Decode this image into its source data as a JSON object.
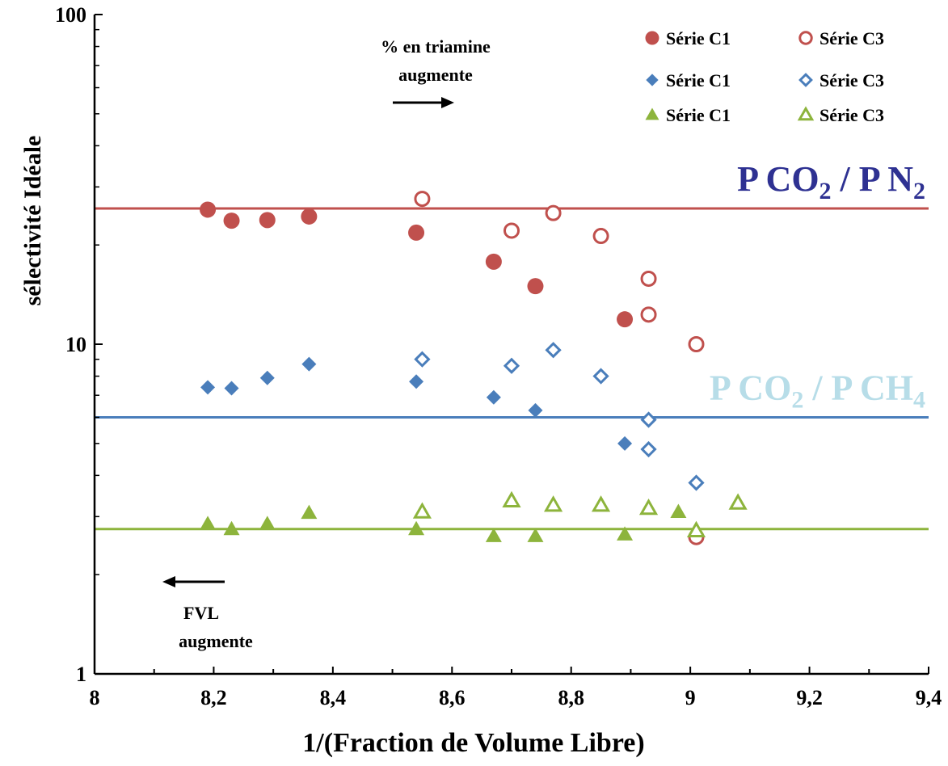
{
  "chart_data": {
    "type": "scatter",
    "title": "",
    "xlabel": "1/(Fraction de Volume Libre)",
    "ylabel": "sélectivité Idéale",
    "xlim": [
      8,
      9.4
    ],
    "ylim": [
      1,
      100
    ],
    "yscale": "log",
    "grid": false,
    "legend_position": "top-right",
    "x_ticks": [
      "8",
      "8,2",
      "8,4",
      "8,6",
      "8,8",
      "9",
      "9,2",
      "9,4"
    ],
    "x_tick_values": [
      8,
      8.2,
      8.4,
      8.6,
      8.8,
      9,
      9.2,
      9.4
    ],
    "y_ticks": [
      "1",
      "10",
      "100"
    ],
    "y_tick_values": [
      1,
      10,
      100
    ],
    "colors": {
      "red": "#c0504d",
      "blue": "#4a7ebb",
      "green": "#8db43c"
    },
    "series": [
      {
        "name": "Série C1",
        "color": "#c0504d",
        "marker": "circle",
        "filled": true,
        "x": [
          8.19,
          8.23,
          8.29,
          8.36,
          8.54,
          8.67,
          8.74,
          8.89
        ],
        "y": [
          25.6,
          23.7,
          23.8,
          24.4,
          21.8,
          17.8,
          15.0,
          11.9
        ]
      },
      {
        "name": "Série C3",
        "color": "#c0504d",
        "marker": "circle",
        "filled": false,
        "x": [
          8.55,
          8.7,
          8.77,
          8.85,
          8.93,
          8.93,
          9.01,
          9.01
        ],
        "y": [
          27.6,
          22.1,
          25.0,
          21.3,
          15.8,
          12.3,
          10.0,
          2.6
        ]
      },
      {
        "name": "Série C1",
        "color": "#4a7ebb",
        "marker": "diamond",
        "filled": true,
        "x": [
          8.19,
          8.23,
          8.29,
          8.36,
          8.54,
          8.67,
          8.74,
          8.89
        ],
        "y": [
          7.4,
          7.35,
          7.9,
          8.7,
          7.7,
          6.9,
          6.3,
          5.0
        ]
      },
      {
        "name": "Série C3",
        "color": "#4a7ebb",
        "marker": "diamond",
        "filled": false,
        "x": [
          8.55,
          8.7,
          8.77,
          8.85,
          8.93,
          8.93,
          9.01
        ],
        "y": [
          9.0,
          8.6,
          9.6,
          8.0,
          5.9,
          4.8,
          3.8
        ]
      },
      {
        "name": "Série C1",
        "color": "#8db43c",
        "marker": "triangle",
        "filled": true,
        "x": [
          8.19,
          8.23,
          8.29,
          8.36,
          8.54,
          8.67,
          8.74,
          8.89,
          8.98,
          9.08
        ],
        "y": [
          2.85,
          2.75,
          2.85,
          3.08,
          2.75,
          2.62,
          2.62,
          2.65,
          3.1,
          3.3
        ]
      },
      {
        "name": "Série C3",
        "color": "#8db43c",
        "marker": "triangle",
        "filled": false,
        "x": [
          8.55,
          8.7,
          8.77,
          8.85,
          8.93,
          9.01,
          9.08
        ],
        "y": [
          3.1,
          3.35,
          3.25,
          3.25,
          3.18,
          2.72,
          3.3
        ]
      }
    ],
    "reference_lines": [
      {
        "label_main": "P CO",
        "sub1": "2",
        "label_mid": " / P N",
        "sub2": "2",
        "y": 25.8,
        "color": "#c0504d",
        "label_color": "#2e3192"
      },
      {
        "label_main": "P CO",
        "sub1": "2",
        "label_mid": " / P CH",
        "sub2": "4",
        "y": 6.0,
        "color": "#4a7ebb",
        "label_color": "#b7dde8"
      },
      {
        "label_main": "",
        "sub1": "",
        "label_mid": "",
        "sub2": "",
        "y": 2.75,
        "color": "#8db43c",
        "label_color": ""
      }
    ],
    "annotations": [
      {
        "id": "triamine",
        "lines": [
          "% en triamine",
          "augmente"
        ],
        "arrow": "right"
      },
      {
        "id": "fvl",
        "lines": [
          "FVL",
          "augmente"
        ],
        "arrow": "left"
      }
    ]
  }
}
